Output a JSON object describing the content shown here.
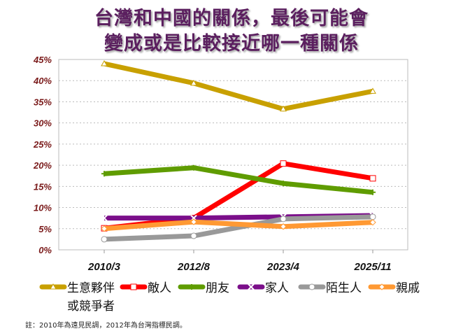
{
  "chart_data": {
    "type": "line",
    "title_lines": [
      "台灣和中國的關係，最後可能會",
      "變成或是比較接近哪一種關係"
    ],
    "categories": [
      "2010/3",
      "2012/8",
      "2023/4",
      "2025/11"
    ],
    "ylim": [
      0,
      45
    ],
    "yticks": [
      "0%",
      "5%",
      "10%",
      "15%",
      "20%",
      "25%",
      "30%",
      "35%",
      "40%",
      "45%"
    ],
    "grid": true,
    "legend_position": "bottom",
    "series": [
      {
        "name": "生意夥伴或競爭者",
        "legend_lines": [
          "生意夥伴",
          "或競爭者"
        ],
        "color": "#c8a000",
        "marker": "triangle",
        "values": [
          44.0,
          39.4,
          33.3,
          37.5
        ]
      },
      {
        "name": "敵人",
        "color": "#ff0000",
        "marker": "square",
        "values": [
          5.1,
          7.5,
          20.4,
          16.9
        ]
      },
      {
        "name": "朋友",
        "color": "#5f9c00",
        "marker": "plus",
        "values": [
          18.0,
          19.4,
          15.7,
          13.6
        ]
      },
      {
        "name": "家人",
        "color": "#7b0f8a",
        "marker": "x",
        "values": [
          7.5,
          7.5,
          7.8,
          8.1
        ]
      },
      {
        "name": "陌生人",
        "color": "#999999",
        "marker": "circle",
        "values": [
          2.5,
          3.3,
          7.3,
          7.8
        ]
      },
      {
        "name": "親戚",
        "color": "#ff9933",
        "marker": "diamond",
        "values": [
          5.0,
          6.6,
          5.5,
          6.5
        ]
      }
    ],
    "footnote": "註：2010年為遠見民調，2012年為台灣指標民調。"
  }
}
